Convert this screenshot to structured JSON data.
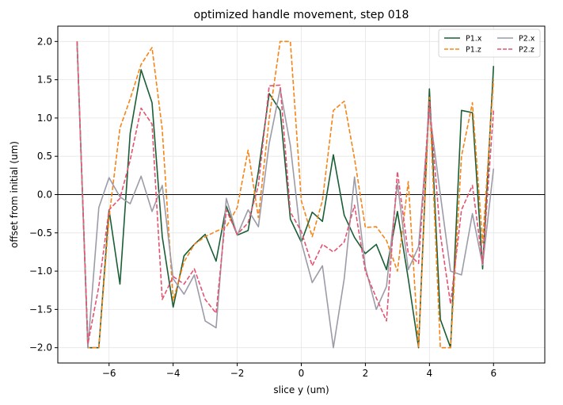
{
  "chart_data": {
    "type": "line",
    "title": "optimized handle movement, step 018",
    "xlabel": "slice y (um)",
    "ylabel": "offset from initial (um)",
    "xlim": [
      -7.6,
      7.6
    ],
    "ylim": [
      -2.2,
      2.2
    ],
    "xticks": [
      -6,
      -4,
      -2,
      0,
      2,
      4,
      6
    ],
    "yticks": [
      -2.0,
      -1.5,
      -1.0,
      -0.5,
      0.0,
      0.5,
      1.0,
      1.5,
      2.0
    ],
    "xtick_labels": [
      "−6",
      "−4",
      "−2",
      "0",
      "2",
      "4",
      "6"
    ],
    "ytick_labels": [
      "−2.0",
      "−1.5",
      "−1.0",
      "−0.5",
      "0.0",
      "0.5",
      "1.0",
      "1.5",
      "2.0"
    ],
    "grid": true,
    "zero_line": true,
    "legend_position": "top-right",
    "x": [
      -7.0,
      -6.66,
      -6.32,
      -6.0,
      -5.66,
      -5.34,
      -5.0,
      -4.66,
      -4.34,
      -4.0,
      -3.66,
      -3.34,
      -3.0,
      -2.66,
      -2.34,
      -2.0,
      -1.66,
      -1.34,
      -1.0,
      -0.66,
      -0.34,
      0.0,
      0.34,
      0.66,
      1.0,
      1.34,
      1.66,
      2.0,
      2.34,
      2.66,
      3.0,
      3.34,
      3.66,
      4.0,
      4.34,
      4.66,
      5.0,
      5.34,
      5.66,
      6.0,
      6.34,
      6.66,
      7.0
    ],
    "series": [
      {
        "name": "P1.x",
        "color": "#1a5e35",
        "dash": "solid",
        "values": [
          2.0,
          -2.0,
          -2.0,
          -0.2,
          -1.17,
          0.8,
          1.63,
          1.2,
          -0.55,
          -1.47,
          -0.8,
          -0.65,
          -0.52,
          -0.87,
          -0.15,
          -0.53,
          -0.47,
          0.3,
          1.32,
          1.1,
          -0.32,
          -0.62,
          -0.23,
          -0.35,
          0.52,
          -0.27,
          -0.56,
          -0.77,
          -0.65,
          -0.98,
          -0.22,
          -1.1,
          -2.0,
          1.38,
          -1.63,
          -2.0,
          1.1,
          1.07,
          -0.97,
          1.68,
          null,
          null,
          null
        ]
      },
      {
        "name": "P1.z",
        "color": "#f58518",
        "dash": "dashed",
        "values": [
          2.0,
          -2.0,
          -2.0,
          -0.3,
          0.87,
          1.25,
          1.7,
          1.92,
          0.85,
          -1.38,
          -0.88,
          -0.65,
          -0.55,
          -0.48,
          -0.42,
          -0.17,
          0.58,
          -0.3,
          1.0,
          2.0,
          2.0,
          -0.08,
          -0.55,
          -0.08,
          1.1,
          1.22,
          0.47,
          -0.43,
          -0.42,
          -0.6,
          -1.0,
          0.17,
          -2.0,
          1.27,
          -2.0,
          -2.0,
          0.5,
          1.2,
          -0.63,
          1.5,
          null,
          null,
          null
        ]
      },
      {
        "name": "P2.x",
        "color": "#9c9ba8",
        "dash": "solid",
        "values": [
          2.0,
          -2.0,
          -0.17,
          0.22,
          -0.03,
          -0.12,
          0.24,
          -0.22,
          0.12,
          -1.1,
          -1.3,
          -1.05,
          -1.65,
          -1.74,
          -0.05,
          -0.53,
          -0.2,
          -0.42,
          0.67,
          1.38,
          0.64,
          -0.62,
          -1.15,
          -0.93,
          -2.0,
          -1.1,
          0.23,
          -0.95,
          -1.5,
          -1.2,
          0.15,
          -0.98,
          -0.68,
          1.1,
          0.0,
          -1.0,
          -1.05,
          -0.25,
          -0.92,
          0.34,
          null,
          null,
          null
        ]
      },
      {
        "name": "P2.z",
        "color": "#e45472",
        "dash": "dashed",
        "values": [
          2.0,
          -1.95,
          -1.2,
          -0.2,
          -0.05,
          0.45,
          1.13,
          0.92,
          -1.37,
          -1.07,
          -1.17,
          -0.97,
          -1.37,
          -1.55,
          -0.2,
          -0.52,
          -0.37,
          0.12,
          1.42,
          1.43,
          -0.23,
          -0.48,
          -0.93,
          -0.65,
          -0.75,
          -0.62,
          -0.14,
          -1.0,
          -1.35,
          -1.65,
          0.3,
          -0.77,
          -0.9,
          1.22,
          -0.52,
          -1.43,
          -0.2,
          0.12,
          -0.9,
          1.1,
          null,
          null,
          null
        ]
      }
    ]
  }
}
